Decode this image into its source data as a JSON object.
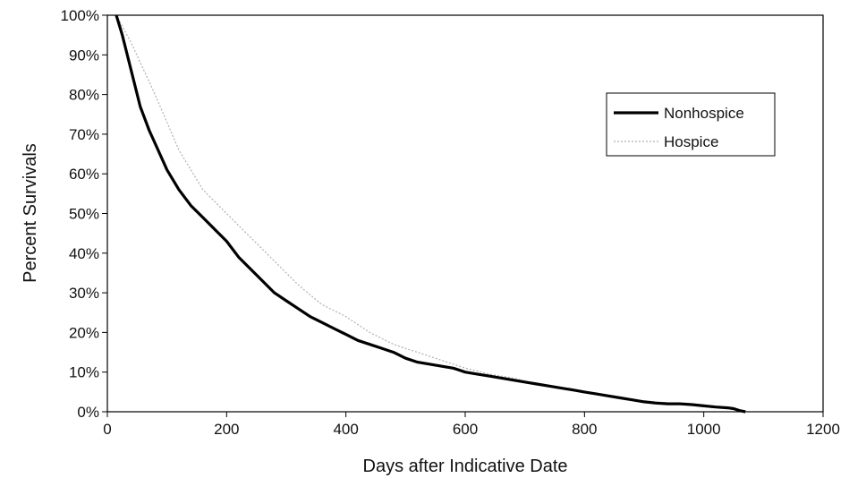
{
  "chart_data": {
    "type": "line",
    "xlabel": "Days after Indicative Date",
    "ylabel": "Percent Survivals",
    "xlim": [
      0,
      1200
    ],
    "ylim": [
      0,
      100
    ],
    "x_ticks": [
      0,
      200,
      400,
      600,
      800,
      1000,
      1200
    ],
    "x_tick_labels": [
      "0",
      "200",
      "400",
      "600",
      "800",
      "1000",
      "1200"
    ],
    "y_ticks": [
      0,
      10,
      20,
      30,
      40,
      50,
      60,
      70,
      80,
      90,
      100
    ],
    "y_tick_labels": [
      "0%",
      "10%",
      "20%",
      "30%",
      "40%",
      "50%",
      "60%",
      "70%",
      "80%",
      "90%",
      "100%"
    ],
    "grid": false,
    "legend": {
      "position": "right"
    },
    "series": [
      {
        "name": "Nonhospice",
        "color": "#000000",
        "style": "solid-thick",
        "x": [
          15,
          25,
          40,
          55,
          70,
          85,
          100,
          120,
          140,
          160,
          180,
          200,
          220,
          240,
          260,
          280,
          300,
          320,
          340,
          360,
          380,
          400,
          420,
          440,
          460,
          480,
          500,
          520,
          540,
          560,
          580,
          600,
          620,
          640,
          660,
          680,
          700,
          720,
          740,
          760,
          780,
          800,
          820,
          840,
          860,
          880,
          900,
          920,
          940,
          960,
          980,
          1000,
          1020,
          1040,
          1050,
          1060,
          1070
        ],
        "y": [
          100,
          95,
          86,
          77,
          71,
          66,
          61,
          56,
          52,
          49,
          46,
          43,
          39,
          36,
          33,
          30,
          28,
          26,
          24,
          22.5,
          21,
          19.5,
          18,
          17,
          16,
          15,
          13.5,
          12.5,
          12,
          11.5,
          11,
          10,
          9.5,
          9,
          8.5,
          8,
          7.5,
          7,
          6.5,
          6,
          5.5,
          5,
          4.5,
          4,
          3.5,
          3,
          2.5,
          2.2,
          2,
          2,
          1.8,
          1.5,
          1.2,
          1,
          0.8,
          0.3,
          0
        ]
      },
      {
        "name": "Hospice",
        "color": "#b0b0b0",
        "style": "dotted-thin",
        "x": [
          15,
          40,
          80,
          120,
          160,
          200,
          240,
          280,
          320,
          360,
          400,
          440,
          480,
          520,
          560,
          600,
          640,
          680,
          720,
          760,
          800,
          840,
          880,
          920,
          960,
          1000,
          1040,
          1070
        ],
        "y": [
          100,
          93,
          80,
          66,
          56,
          50,
          44,
          38,
          32,
          27,
          24,
          20,
          17,
          15,
          13,
          11,
          9.5,
          8.5,
          7,
          6,
          5,
          4,
          3,
          2.5,
          2,
          1.5,
          1,
          0
        ]
      }
    ]
  }
}
